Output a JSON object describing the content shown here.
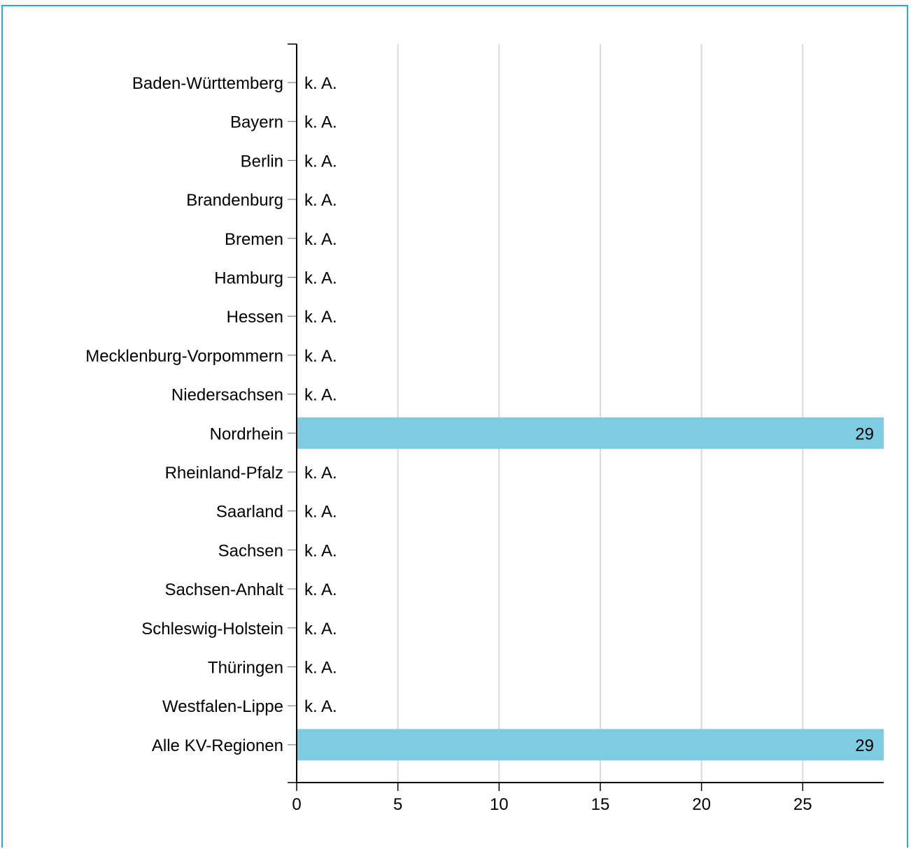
{
  "chart_data": {
    "type": "bar",
    "orientation": "horizontal",
    "categories": [
      "Baden-Württemberg",
      "Bayern",
      "Berlin",
      "Brandenburg",
      "Bremen",
      "Hamburg",
      "Hessen",
      "Mecklenburg-Vorpommern",
      "Niedersachsen",
      "Nordrhein",
      "Rheinland-Pfalz",
      "Saarland",
      "Sachsen",
      "Sachsen-Anhalt",
      "Schleswig-Holstein",
      "Thüringen",
      "Westfalen-Lippe",
      "Alle KV-Regionen"
    ],
    "values": [
      null,
      null,
      null,
      null,
      null,
      null,
      null,
      null,
      null,
      29,
      null,
      null,
      null,
      null,
      null,
      null,
      null,
      29
    ],
    "value_labels": [
      "k. A.",
      "k. A.",
      "k. A.",
      "k. A.",
      "k. A.",
      "k. A.",
      "k. A.",
      "k. A.",
      "k. A.",
      "29",
      "k. A.",
      "k. A.",
      "k. A.",
      "k. A.",
      "k. A.",
      "k. A.",
      "k. A.",
      "29"
    ],
    "xlim": [
      0,
      29
    ],
    "x_ticks": [
      0,
      5,
      10,
      15,
      20,
      25
    ],
    "x_tick_labels": [
      "0",
      "5",
      "10",
      "15",
      "20",
      "25"
    ],
    "grid": true,
    "bar_color": "#7ecce2",
    "grid_color": "#d9d9d9",
    "frame_color": "#29a9d3"
  }
}
